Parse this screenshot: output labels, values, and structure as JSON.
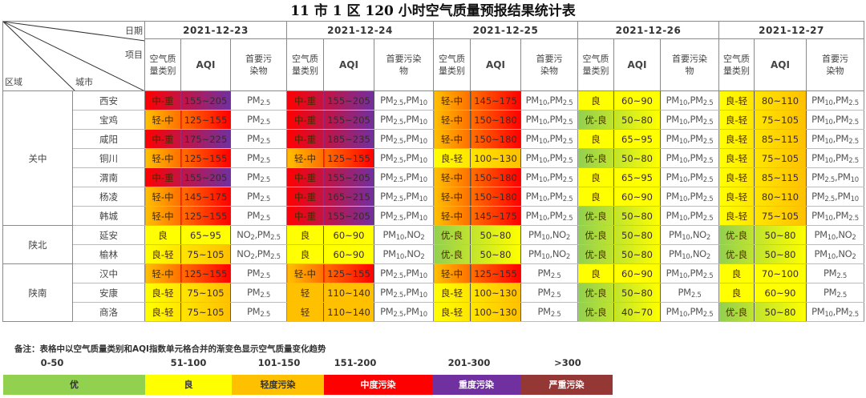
{
  "title": "11 市 1 区 120 小时空气质量预报结果统计表",
  "header": {
    "corner": {
      "date": "日期",
      "item": "项目",
      "region": "区域",
      "city": "城市"
    },
    "dates": [
      "2021-12-23",
      "2021-12-24",
      "2021-12-25",
      "2021-12-26",
      "2021-12-27"
    ],
    "sub": {
      "category": "空气质量类别",
      "aqi": "AQI",
      "pollutant": "首要污染物"
    }
  },
  "colors": {
    "优": "#92d050",
    "良": "#ffff00",
    "轻": "#ffc000",
    "中": "#ff0000",
    "重": "#7030a0",
    "严重": "#953735"
  },
  "regions": [
    {
      "name": "关中",
      "rows": 7
    },
    {
      "name": "陕北",
      "rows": 2
    },
    {
      "name": "陕南",
      "rows": 3
    }
  ],
  "rows": [
    {
      "city": "西安",
      "days": [
        {
          "cat": "中-重",
          "aqi": "155~205",
          "poll": "PM2.5"
        },
        {
          "cat": "中-重",
          "aqi": "155~205",
          "poll": "PM2.5,PM10"
        },
        {
          "cat": "轻-中",
          "aqi": "145~175",
          "poll": "PM10,PM2.5"
        },
        {
          "cat": "良",
          "aqi": "60~90",
          "poll": "PM10,PM2.5"
        },
        {
          "cat": "良-轻",
          "aqi": "80~110",
          "poll": "PM10,PM2.5"
        }
      ]
    },
    {
      "city": "宝鸡",
      "days": [
        {
          "cat": "轻-中",
          "aqi": "125~155",
          "poll": "PM2.5"
        },
        {
          "cat": "中-重",
          "aqi": "155~205",
          "poll": "PM2.5,PM10"
        },
        {
          "cat": "轻-中",
          "aqi": "150~180",
          "poll": "PM10,PM2.5"
        },
        {
          "cat": "优-良",
          "aqi": "50~80",
          "poll": "PM10,PM2.5"
        },
        {
          "cat": "良-轻",
          "aqi": "75~105",
          "poll": "PM10,PM2.5"
        }
      ]
    },
    {
      "city": "咸阳",
      "days": [
        {
          "cat": "中-重",
          "aqi": "175~225",
          "poll": "PM2.5"
        },
        {
          "cat": "中-重",
          "aqi": "185~235",
          "poll": "PM2.5,PM10"
        },
        {
          "cat": "轻-中",
          "aqi": "150~180",
          "poll": "PM10,PM2.5"
        },
        {
          "cat": "良",
          "aqi": "65~95",
          "poll": "PM10,PM2.5"
        },
        {
          "cat": "良-轻",
          "aqi": "85~115",
          "poll": "PM10,PM2.5"
        }
      ]
    },
    {
      "city": "铜川",
      "days": [
        {
          "cat": "轻-中",
          "aqi": "125~155",
          "poll": "PM2.5"
        },
        {
          "cat": "轻-中",
          "aqi": "125~155",
          "poll": "PM2.5,PM10"
        },
        {
          "cat": "良-轻",
          "aqi": "100~130",
          "poll": "PM10,PM2.5"
        },
        {
          "cat": "优-良",
          "aqi": "50~80",
          "poll": "PM10,PM2.5"
        },
        {
          "cat": "良-轻",
          "aqi": "75~105",
          "poll": "PM10,PM2.5"
        }
      ]
    },
    {
      "city": "渭南",
      "days": [
        {
          "cat": "中-重",
          "aqi": "155~205",
          "poll": "PM2.5"
        },
        {
          "cat": "中-重",
          "aqi": "155~205",
          "poll": "PM2.5,PM10"
        },
        {
          "cat": "轻-中",
          "aqi": "150~180",
          "poll": "PM10,PM2.5"
        },
        {
          "cat": "良",
          "aqi": "65~95",
          "poll": "PM10,PM2.5"
        },
        {
          "cat": "良-轻",
          "aqi": "85~115",
          "poll": "PM2.5,PM10"
        }
      ]
    },
    {
      "city": "杨凌",
      "days": [
        {
          "cat": "轻-中",
          "aqi": "145~175",
          "poll": "PM2.5"
        },
        {
          "cat": "中-重",
          "aqi": "165~215",
          "poll": "PM2.5,PM10"
        },
        {
          "cat": "轻-中",
          "aqi": "150~180",
          "poll": "PM10,PM2.5"
        },
        {
          "cat": "良",
          "aqi": "60~90",
          "poll": "PM10,PM2.5"
        },
        {
          "cat": "良-轻",
          "aqi": "80~110",
          "poll": "PM2.5,PM10"
        }
      ]
    },
    {
      "city": "韩城",
      "days": [
        {
          "cat": "轻-中",
          "aqi": "125~155",
          "poll": "PM2.5"
        },
        {
          "cat": "中-重",
          "aqi": "155~205",
          "poll": "PM2.5,PM10"
        },
        {
          "cat": "轻-中",
          "aqi": "145~175",
          "poll": "PM10,PM2.5"
        },
        {
          "cat": "优-良",
          "aqi": "50~80",
          "poll": "PM10,PM2.5"
        },
        {
          "cat": "良-轻",
          "aqi": "75~105",
          "poll": "PM10,PM2.5"
        }
      ]
    },
    {
      "city": "延安",
      "days": [
        {
          "cat": "良",
          "aqi": "65~95",
          "poll": "NO2,PM2.5"
        },
        {
          "cat": "良",
          "aqi": "60~90",
          "poll": "PM10,NO2"
        },
        {
          "cat": "优-良",
          "aqi": "50~80",
          "poll": "PM10,NO2"
        },
        {
          "cat": "优-良",
          "aqi": "50~80",
          "poll": "PM10,NO2"
        },
        {
          "cat": "优-良",
          "aqi": "50~80",
          "poll": "PM10,NO2"
        }
      ]
    },
    {
      "city": "榆林",
      "days": [
        {
          "cat": "良-轻",
          "aqi": "75~105",
          "poll": "NO2,PM2.5"
        },
        {
          "cat": "良",
          "aqi": "60~90",
          "poll": "PM10,NO2"
        },
        {
          "cat": "优-良",
          "aqi": "50~80",
          "poll": "PM10,NO2"
        },
        {
          "cat": "优-良",
          "aqi": "50~80",
          "poll": "PM10,NO2"
        },
        {
          "cat": "优-良",
          "aqi": "50~80",
          "poll": "PM10,NO2"
        }
      ]
    },
    {
      "city": "汉中",
      "days": [
        {
          "cat": "轻-中",
          "aqi": "125~155",
          "poll": "PM2.5"
        },
        {
          "cat": "轻-中",
          "aqi": "125~155",
          "poll": "PM2.5,PM10"
        },
        {
          "cat": "轻-中",
          "aqi": "125~155",
          "poll": "PM2.5"
        },
        {
          "cat": "良",
          "aqi": "60~90",
          "poll": "PM10,PM2.5"
        },
        {
          "cat": "良",
          "aqi": "70~100",
          "poll": "PM2.5"
        }
      ]
    },
    {
      "city": "安康",
      "days": [
        {
          "cat": "良-轻",
          "aqi": "75~105",
          "poll": "PM2.5"
        },
        {
          "cat": "轻",
          "aqi": "110~140",
          "poll": "PM2.5,PM10"
        },
        {
          "cat": "良-轻",
          "aqi": "100~130",
          "poll": "PM2.5"
        },
        {
          "cat": "优-良",
          "aqi": "50~80",
          "poll": "PM2.5"
        },
        {
          "cat": "良",
          "aqi": "60~90",
          "poll": "PM2.5"
        }
      ]
    },
    {
      "city": "商洛",
      "days": [
        {
          "cat": "良-轻",
          "aqi": "75~105",
          "poll": "PM2.5"
        },
        {
          "cat": "轻",
          "aqi": "110~140",
          "poll": "PM2.5,PM10"
        },
        {
          "cat": "良-轻",
          "aqi": "100~130",
          "poll": "PM2.5"
        },
        {
          "cat": "优-良",
          "aqi": "40~70",
          "poll": "PM10,PM2.5"
        },
        {
          "cat": "优-良",
          "aqi": "50~80",
          "poll": "PM10,PM2.5"
        }
      ]
    }
  ],
  "legend": {
    "note": "备注：表格中以空气质量类别和AQI指数单元格合并的渐变色显示空气质量变化趋势",
    "items": [
      {
        "range": "0-50",
        "label": "优",
        "color": "#92d050",
        "text_color": "#333333"
      },
      {
        "range": "51-100",
        "label": "良",
        "color": "#ffff00",
        "text_color": "#333333"
      },
      {
        "range": "101-150",
        "label": "轻度污染",
        "color": "#ffc000",
        "text_color": "#333333"
      },
      {
        "range": "151-200",
        "label": "中度污染",
        "color": "#ff0000",
        "text_color": "#ffffff"
      },
      {
        "range": "201-300",
        "label": "重度污染",
        "color": "#7030a0",
        "text_color": "#ffffff"
      },
      {
        "range": ">300",
        "label": "严重污染",
        "color": "#953735",
        "text_color": "#ffffff"
      }
    ]
  }
}
